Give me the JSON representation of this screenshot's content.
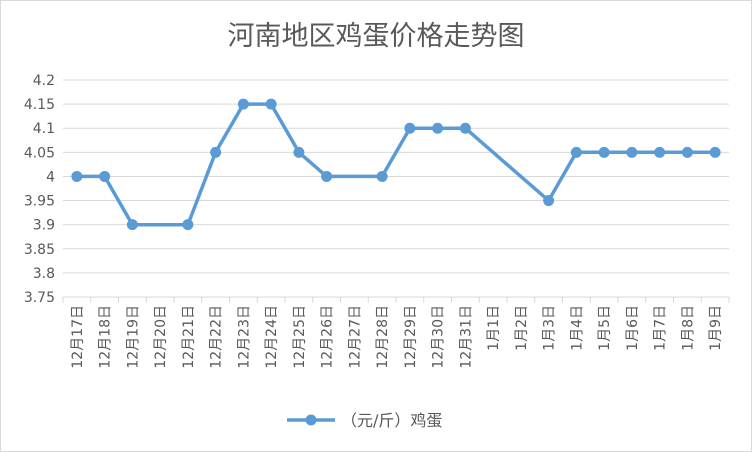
{
  "chart_data": {
    "type": "line",
    "title": "河南地区鸡蛋价格走势图",
    "xlabel": "",
    "ylabel": "",
    "ylim": [
      3.75,
      4.2
    ],
    "yticks": [
      "3.75",
      "3.8",
      "3.85",
      "3.9",
      "3.95",
      "4",
      "4.05",
      "4.1",
      "4.15",
      "4.2"
    ],
    "categories": [
      "12月17日",
      "12月18日",
      "12月19日",
      "12月20日",
      "12月21日",
      "12月22日",
      "12月23日",
      "12月24日",
      "12月25日",
      "12月26日",
      "12月27日",
      "12月28日",
      "12月29日",
      "12月30日",
      "12月31日",
      "1月1日",
      "1月2日",
      "1月3日",
      "1月4日",
      "1月5日",
      "1月6日",
      "1月7日",
      "1月8日",
      "1月9日"
    ],
    "series": [
      {
        "name": "（元/斤）鸡蛋",
        "color": "#5b9bd5",
        "values": [
          4.0,
          4.0,
          3.9,
          null,
          3.9,
          4.05,
          4.15,
          4.15,
          4.05,
          4.0,
          null,
          4.0,
          4.1,
          4.1,
          4.1,
          null,
          null,
          3.95,
          4.05,
          4.05,
          4.05,
          4.05,
          4.05,
          4.05
        ]
      }
    ],
    "grid": true,
    "legend_position": "bottom"
  }
}
